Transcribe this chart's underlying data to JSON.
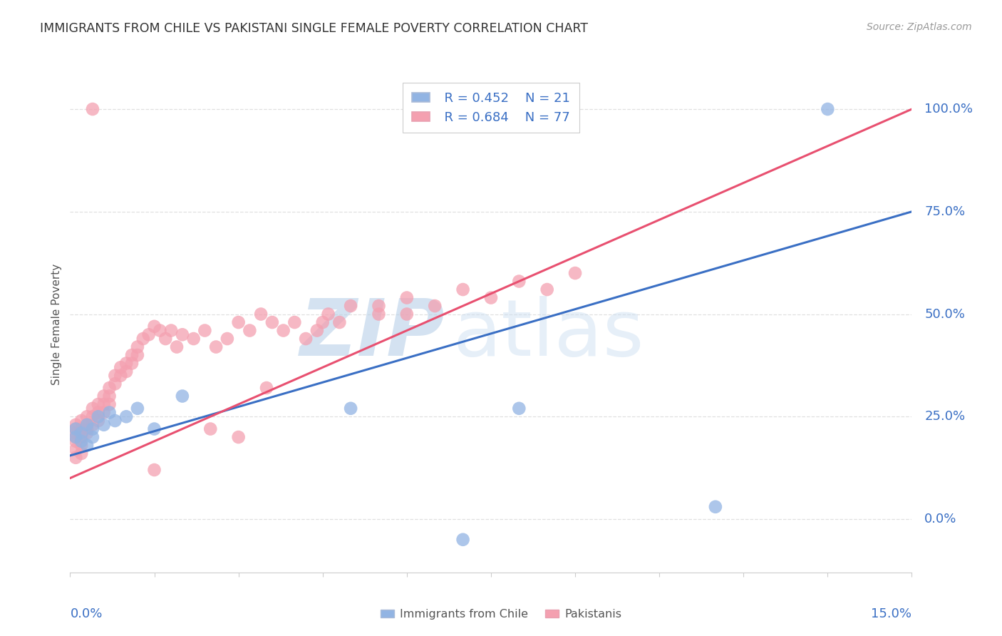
{
  "title": "IMMIGRANTS FROM CHILE VS PAKISTANI SINGLE FEMALE POVERTY CORRELATION CHART",
  "source": "Source: ZipAtlas.com",
  "ylabel": "Single Female Poverty",
  "xlim": [
    0.0,
    0.15
  ],
  "ylim": [
    -0.13,
    1.08
  ],
  "legend_blue_r": "R = 0.452",
  "legend_blue_n": "N = 21",
  "legend_pink_r": "R = 0.684",
  "legend_pink_n": "N = 77",
  "legend_label_blue": "Immigrants from Chile",
  "legend_label_pink": "Pakistanis",
  "blue_color": "#92B4E3",
  "pink_color": "#F4A0B0",
  "blue_line_color": "#3A6FC4",
  "pink_line_color": "#E85070",
  "watermark_zip_color": "#B8D0E8",
  "watermark_atlas_color": "#C8DCF0",
  "blue_x": [
    0.001,
    0.001,
    0.002,
    0.002,
    0.003,
    0.003,
    0.004,
    0.004,
    0.005,
    0.006,
    0.007,
    0.008,
    0.01,
    0.012,
    0.015,
    0.02,
    0.05,
    0.07,
    0.08,
    0.115,
    0.135
  ],
  "blue_y": [
    0.22,
    0.2,
    0.21,
    0.19,
    0.23,
    0.18,
    0.22,
    0.2,
    0.25,
    0.23,
    0.26,
    0.24,
    0.25,
    0.27,
    0.22,
    0.3,
    0.27,
    -0.05,
    0.27,
    0.03,
    1.0
  ],
  "pink_x": [
    0.001,
    0.001,
    0.001,
    0.001,
    0.001,
    0.001,
    0.001,
    0.002,
    0.002,
    0.002,
    0.002,
    0.002,
    0.003,
    0.003,
    0.003,
    0.003,
    0.004,
    0.004,
    0.004,
    0.005,
    0.005,
    0.005,
    0.006,
    0.006,
    0.006,
    0.007,
    0.007,
    0.007,
    0.008,
    0.008,
    0.009,
    0.009,
    0.01,
    0.01,
    0.011,
    0.011,
    0.012,
    0.012,
    0.013,
    0.014,
    0.015,
    0.016,
    0.017,
    0.018,
    0.019,
    0.02,
    0.022,
    0.024,
    0.026,
    0.028,
    0.03,
    0.032,
    0.034,
    0.036,
    0.038,
    0.04,
    0.042,
    0.044,
    0.046,
    0.048,
    0.05,
    0.055,
    0.06,
    0.065,
    0.07,
    0.075,
    0.08,
    0.085,
    0.09,
    0.035,
    0.025,
    0.015,
    0.045,
    0.055,
    0.06,
    0.03,
    0.004
  ],
  "pink_y": [
    0.22,
    0.2,
    0.23,
    0.21,
    0.19,
    0.17,
    0.15,
    0.22,
    0.24,
    0.2,
    0.18,
    0.16,
    0.22,
    0.25,
    0.23,
    0.21,
    0.25,
    0.27,
    0.23,
    0.28,
    0.26,
    0.24,
    0.3,
    0.28,
    0.26,
    0.32,
    0.3,
    0.28,
    0.35,
    0.33,
    0.37,
    0.35,
    0.38,
    0.36,
    0.4,
    0.38,
    0.42,
    0.4,
    0.44,
    0.45,
    0.47,
    0.46,
    0.44,
    0.46,
    0.42,
    0.45,
    0.44,
    0.46,
    0.42,
    0.44,
    0.48,
    0.46,
    0.5,
    0.48,
    0.46,
    0.48,
    0.44,
    0.46,
    0.5,
    0.48,
    0.52,
    0.5,
    0.54,
    0.52,
    0.56,
    0.54,
    0.58,
    0.56,
    0.6,
    0.32,
    0.22,
    0.12,
    0.48,
    0.52,
    0.5,
    0.2,
    1.0
  ],
  "blue_trend_x": [
    0.0,
    0.15
  ],
  "blue_trend_y": [
    0.155,
    0.75
  ],
  "pink_trend_x": [
    0.0,
    0.15
  ],
  "pink_trend_y": [
    0.1,
    1.0
  ],
  "ytick_vals": [
    0.0,
    0.25,
    0.5,
    0.75,
    1.0
  ],
  "ytick_labels": [
    "0.0%",
    "25.0%",
    "50.0%",
    "75.0%",
    "100.0%"
  ],
  "grid_color": "#E0E0E0",
  "spine_color": "#CCCCCC",
  "background_color": "#FFFFFF",
  "title_color": "#333333",
  "source_color": "#999999",
  "axis_label_color": "#3A6FC4",
  "ylabel_color": "#555555"
}
